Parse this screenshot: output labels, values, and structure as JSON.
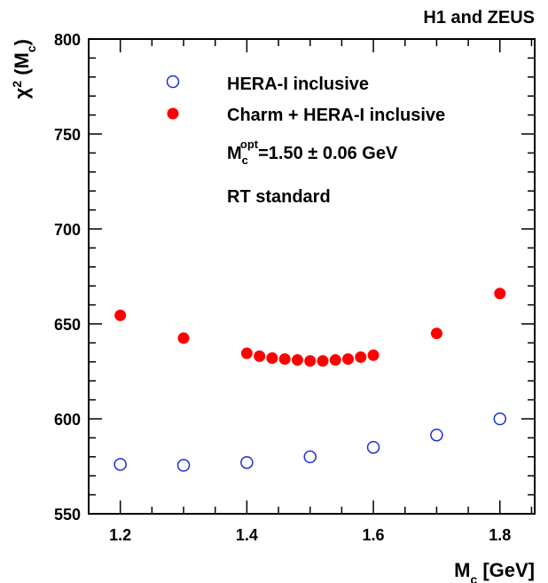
{
  "chart_data": {
    "type": "scatter",
    "title": "H1 and ZEUS",
    "ylabel": {
      "main": "χ",
      "sup": "2",
      "open": " (M",
      "sub": "c",
      "close": ")"
    },
    "xlabel": {
      "main": "M",
      "sub": "c",
      "rest": " [GeV]"
    },
    "xlim": [
      1.15,
      1.855
    ],
    "ylim": [
      550,
      800
    ],
    "x_major_ticks": [
      1.2,
      1.4,
      1.6,
      1.8
    ],
    "x_tick_labels": [
      "1.2",
      "1.4",
      "1.6",
      "1.8"
    ],
    "y_major_ticks": [
      550,
      600,
      650,
      700,
      750,
      800
    ],
    "y_tick_labels": [
      "550",
      "600",
      "650",
      "700",
      "750",
      "800"
    ],
    "x_minor_step": 0.05,
    "y_minor_step": 10,
    "grid": false,
    "legend_position": "top-left",
    "series": [
      {
        "name": "HERA-I inclusive",
        "marker": "open-circle",
        "color": "#1a2fd6",
        "x": [
          1.2,
          1.3,
          1.4,
          1.5,
          1.6,
          1.7,
          1.8
        ],
        "y": [
          576.0,
          575.5,
          577.0,
          580.0,
          585.0,
          591.5,
          600.0
        ]
      },
      {
        "name": "Charm + HERA-I inclusive",
        "marker": "filled-circle",
        "color": "#ff0000",
        "x": [
          1.2,
          1.3,
          1.4,
          1.42,
          1.44,
          1.46,
          1.48,
          1.5,
          1.52,
          1.54,
          1.56,
          1.58,
          1.6,
          1.7,
          1.8
        ],
        "y": [
          654.5,
          642.5,
          634.5,
          633.0,
          632.0,
          631.5,
          631.0,
          630.5,
          630.5,
          631.0,
          631.5,
          632.5,
          633.5,
          645.0,
          666.0
        ]
      }
    ],
    "annotations": {
      "mopt": {
        "main": "M",
        "sub": "c",
        "sup": "opt",
        "rest": "=1.50 ± 0.06 GeV"
      },
      "scheme": "RT standard"
    }
  }
}
